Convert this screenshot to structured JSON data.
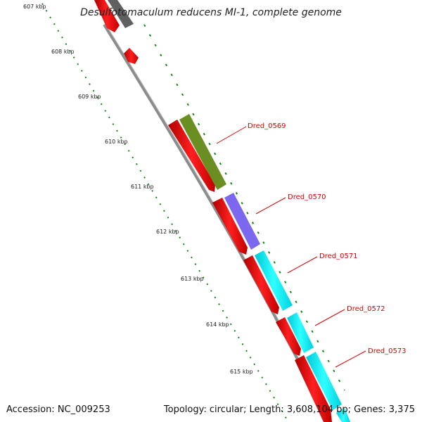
{
  "title": "Desulfotomaculum reducens MI-1, complete genome",
  "footer": {
    "accession": "Accession: NC_009253",
    "stats": "Topology: circular; Length: 3,608,104 bp; Genes: 3,375"
  },
  "kbp_labels": [
    "607 kbp",
    "608 kbp",
    "609 kbp",
    "610 kbp",
    "611 kbp",
    "612 kbp",
    "613 kbp",
    "614 kbp",
    "615 kbp"
  ],
  "gene_labels": [
    "Dred_0569",
    "Dred_0570",
    "Dred_0571",
    "Dred_0572",
    "Dred_0573"
  ],
  "colors": {
    "backbone": "#8c8c8c",
    "cds": "#ff0000",
    "cog_olive": "#6b8e23",
    "cog_purple": "#7b68ee",
    "cog_cyan": "#00ffff",
    "gray_feature": "#606060",
    "gc_ticks": "#118811",
    "label": "#dd0000"
  }
}
